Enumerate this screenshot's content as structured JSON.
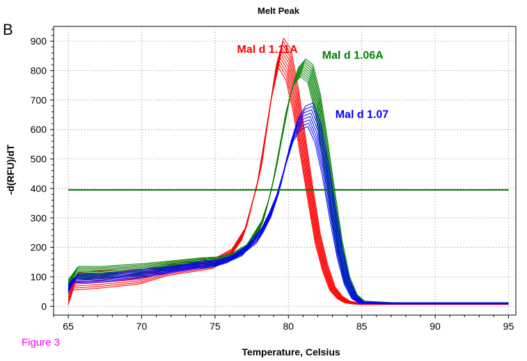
{
  "panel_letter": "B",
  "figure_label": "Figure 3",
  "figure_label_color": "#ff00ff",
  "chart_data": {
    "type": "line",
    "title": "Melt Peak",
    "xlabel": "Temperature, Celsius",
    "ylabel": "-d(RFU)/dT",
    "xlim": [
      64,
      95.5
    ],
    "ylim": [
      -30,
      950
    ],
    "xticks": [
      65,
      70,
      75,
      80,
      85,
      90,
      95
    ],
    "yticks": [
      0,
      100,
      200,
      300,
      400,
      500,
      600,
      700,
      800,
      900
    ],
    "grid": "dotted",
    "threshold": {
      "y": 395,
      "x_range": [
        65,
        95
      ],
      "color": "#007a00"
    },
    "series": [
      {
        "name": "Mal d 1.11A",
        "color": "#ff0000",
        "replicates": 10,
        "label_position": [
          76.5,
          860
        ],
        "x": [
          65,
          65.5,
          67,
          70,
          72,
          74,
          75,
          76,
          77,
          78,
          78.5,
          79,
          79.5,
          80,
          80.5,
          81,
          81.5,
          82,
          82.5,
          83,
          83.5,
          84,
          84.5,
          85,
          87,
          90,
          94.5,
          95
        ],
        "values": [
          35,
          85,
          90,
          100,
          125,
          140,
          148,
          175,
          250,
          440,
          600,
          760,
          860,
          820,
          700,
          540,
          380,
          230,
          130,
          60,
          30,
          15,
          10,
          8,
          8,
          8,
          8,
          8
        ],
        "spread": [
          30,
          30,
          30,
          25,
          20,
          20,
          20,
          20,
          25,
          40,
          50,
          60,
          50,
          50,
          40,
          30,
          20,
          15,
          10,
          6,
          4,
          3,
          2,
          2,
          2,
          2,
          2,
          2
        ]
      },
      {
        "name": "Mal d 1.06A",
        "color": "#008000",
        "replicates": 10,
        "label_position": [
          82.3,
          840
        ],
        "x": [
          65,
          65.5,
          67,
          70,
          72,
          74,
          75,
          76,
          77,
          78,
          78.5,
          79,
          79.5,
          80,
          80.5,
          81,
          81.5,
          82,
          82.5,
          83,
          83.5,
          84,
          84.5,
          85,
          87,
          90,
          94.5,
          95
        ],
        "values": [
          70,
          115,
          115,
          125,
          140,
          150,
          152,
          165,
          190,
          260,
          330,
          430,
          560,
          690,
          780,
          810,
          790,
          690,
          530,
          360,
          200,
          90,
          35,
          15,
          10,
          10,
          10,
          10
        ],
        "spread": [
          20,
          20,
          20,
          20,
          15,
          15,
          15,
          15,
          20,
          30,
          35,
          40,
          40,
          35,
          30,
          30,
          30,
          30,
          30,
          25,
          20,
          10,
          5,
          3,
          2,
          2,
          2,
          2
        ]
      },
      {
        "name": "Mal d 1.07",
        "color": "#0000ff",
        "replicates": 8,
        "label_position": [
          83.2,
          640
        ],
        "x": [
          65,
          65.5,
          67,
          70,
          72,
          74,
          75,
          76,
          77,
          78,
          78.5,
          79,
          79.5,
          80,
          80.5,
          81,
          81.5,
          82,
          82.5,
          83,
          83.5,
          84,
          84.5,
          85,
          87,
          90,
          94.5,
          95
        ],
        "values": [
          60,
          95,
          95,
          110,
          125,
          140,
          145,
          160,
          190,
          240,
          285,
          340,
          420,
          520,
          600,
          640,
          650,
          590,
          470,
          320,
          180,
          80,
          30,
          12,
          10,
          10,
          10,
          10
        ],
        "spread": [
          15,
          15,
          15,
          15,
          12,
          12,
          12,
          12,
          15,
          25,
          30,
          35,
          40,
          40,
          40,
          40,
          40,
          35,
          30,
          25,
          15,
          8,
          4,
          2,
          2,
          2,
          2,
          2
        ]
      }
    ]
  }
}
